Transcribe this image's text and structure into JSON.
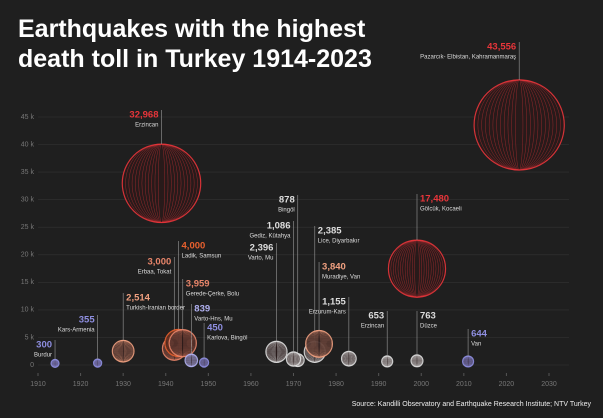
{
  "title": "Earthquakes with the highest death toll in Turkey 1914-2023",
  "source": "Source: Kandilli Observatory and Earthquake Research Institute; NTV Turkey",
  "chart_data": {
    "type": "bubble",
    "x": [
      1914,
      1924,
      1930,
      1939,
      1942,
      1943,
      1944,
      1946,
      1949,
      1966,
      1971,
      1970,
      1975,
      1976,
      1983,
      1992,
      1999,
      1999,
      2011,
      2023
    ],
    "values": [
      300,
      355,
      2514,
      32968,
      3000,
      4000,
      3959,
      839,
      450,
      2396,
      878,
      1086,
      2385,
      3840,
      1155,
      653,
      763,
      17480,
      644,
      43556
    ],
    "value_labels": [
      "300",
      "355",
      "2,514",
      "32,968",
      "3,000",
      "4,000",
      "3,959",
      "839",
      "450",
      "2,396",
      "878",
      "1,086",
      "2,385",
      "3,840",
      "1,155",
      "653",
      "763",
      "17,480",
      "644",
      "43,556"
    ],
    "names": [
      "Burdur",
      "Kars-Armenia",
      "Turkish-Iranian border",
      "Erzincan",
      "Erbaa, Tokat",
      "Ladik, Samsun",
      "Gerede-Çerke, Bolu",
      "Varto-Hns, Mu",
      "Karlova, Bingöl",
      "Varto, Mu",
      "Bingöl",
      "Gediz, Kütahya",
      "Lice, Diyarbakır",
      "Muradiye, Van",
      "Erzurum-Kars",
      "Erzincan",
      "Düzce",
      "Gölcük, Kocaeli",
      "Van",
      "Pazarcık- Elbistan, Kahramanmaraş"
    ],
    "colors": [
      "#8e8ee0",
      "#8e8ee0",
      "#f0a080",
      "#e8353a",
      "#e8856a",
      "#e8602e",
      "#e8856a",
      "#b0b0f0",
      "#8e8ee0",
      "#dddddd",
      "#dddddd",
      "#dddddd",
      "#dddddd",
      "#f0a080",
      "#dddddd",
      "#dddddd",
      "#dddddd",
      "#e8353a",
      "#8e8ee0",
      "#e8353a"
    ],
    "xlim": [
      1910,
      2030
    ],
    "xticks": [
      1910,
      1920,
      1930,
      1940,
      1950,
      1960,
      1970,
      1980,
      1990,
      2000,
      2010,
      2020,
      2030
    ],
    "ylim": [
      0,
      45000
    ],
    "yticks": [
      0,
      {
        "value": 5000,
        "label": "5 k"
      },
      {
        "value": 10000,
        "label": "10 k"
      },
      {
        "value": 15000,
        "label": "15 k"
      },
      {
        "value": 20000,
        "label": "20 k"
      },
      {
        "value": 25000,
        "label": "25 k"
      },
      {
        "value": 30000,
        "label": "30 k"
      },
      {
        "value": 35000,
        "label": "35 k"
      },
      {
        "value": 40000,
        "label": "40 k"
      },
      {
        "value": 45000,
        "label": "45 k"
      }
    ],
    "grid": true
  }
}
